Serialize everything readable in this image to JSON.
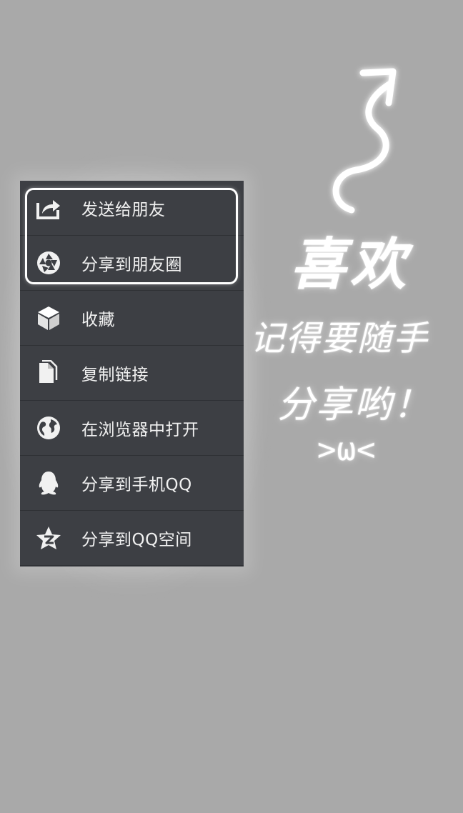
{
  "share_menu": {
    "items": [
      {
        "label": "发送给朋友",
        "icon": "send-to-friend-icon"
      },
      {
        "label": "分享到朋友圈",
        "icon": "moments-icon"
      },
      {
        "label": "收藏",
        "icon": "favorite-cube-icon"
      },
      {
        "label": "复制链接",
        "icon": "copy-link-icon"
      },
      {
        "label": "在浏览器中打开",
        "icon": "browser-globe-icon"
      },
      {
        "label": "分享到手机QQ",
        "icon": "qq-penguin-icon"
      },
      {
        "label": "分享到QQ空间",
        "icon": "qzone-star-icon"
      }
    ]
  },
  "annotation": {
    "like": "喜欢",
    "remember": "记得要随手",
    "share": "分享哟！",
    "kaomoji": ">ω<"
  },
  "colors": {
    "background": "#a9a9a9",
    "menu_background": "#3d3f44",
    "divider": "#2f3135",
    "text": "#f1f1f1",
    "highlight": "#ffffff"
  }
}
